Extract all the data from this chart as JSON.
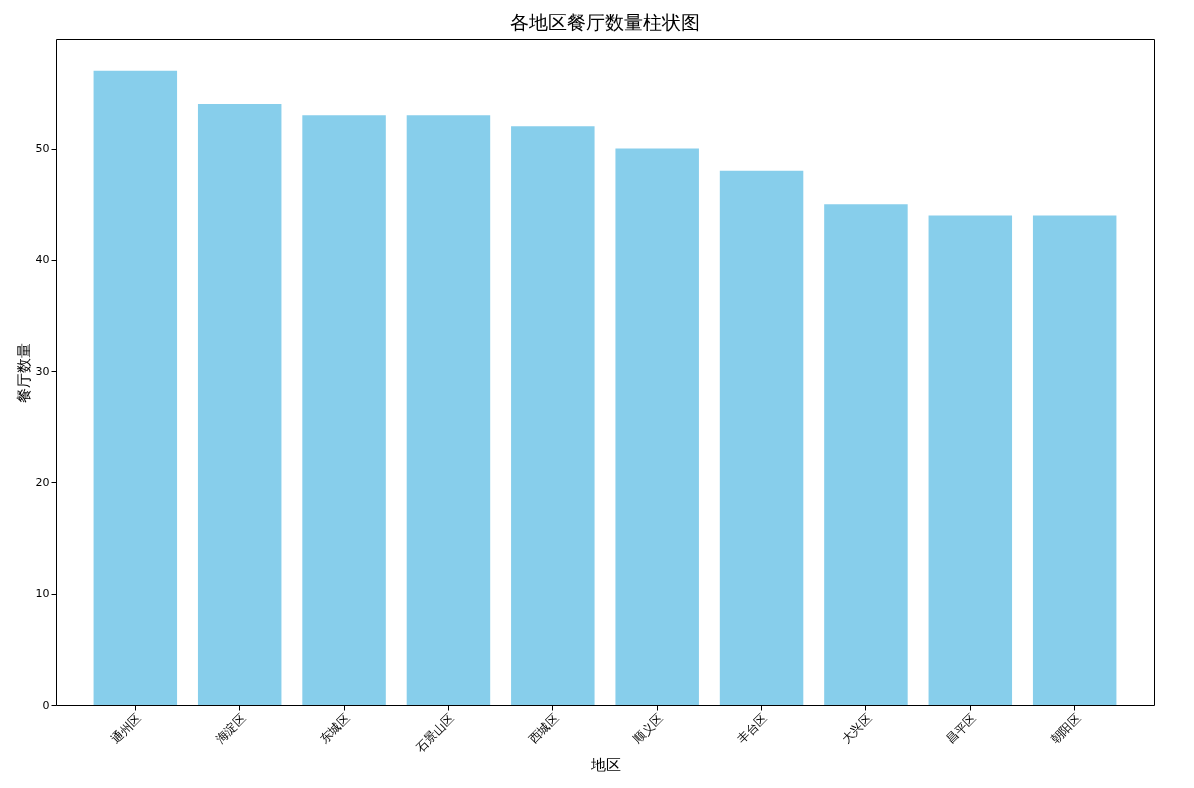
{
  "chart_data": {
    "type": "bar",
    "title": "各地区餐厅数量柱状图",
    "xlabel": "地区",
    "ylabel": "餐厅数量",
    "categories": [
      "通州区",
      "海淀区",
      "东城区",
      "石景山区",
      "西城区",
      "顺义区",
      "丰台区",
      "大兴区",
      "昌平区",
      "朝阳区"
    ],
    "values": [
      57,
      54,
      53,
      53,
      52,
      50,
      48,
      45,
      44,
      44
    ],
    "color": "#87ceeb",
    "ylim": [
      0,
      59.85
    ],
    "yticks": [
      0,
      10,
      20,
      30,
      40,
      50
    ],
    "grid": false
  }
}
